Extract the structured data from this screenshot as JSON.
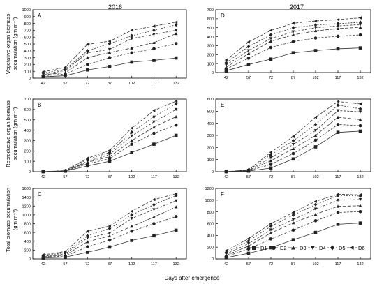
{
  "figure": {
    "year_left": "2016",
    "year_right": "2017",
    "row_ylabels": [
      [
        "Vegetative organ biomass",
        "accumulation (gm m⁻²)"
      ],
      [
        "Reproductive organ biomass",
        "accumulation (gm m⁻²)"
      ],
      [
        "Total biomass accumulation",
        "(gm m⁻²)"
      ]
    ],
    "xlabel": "Days after emergence",
    "legend": [
      "D1",
      "D2",
      "D3",
      "D4",
      "D5",
      "D6"
    ],
    "marker_shapes": [
      "square",
      "circle",
      "triangle-up",
      "triangle-down",
      "diamond",
      "triangle-left"
    ]
  },
  "chart_data": [
    {
      "type": "line",
      "panel": "A",
      "x": [
        42,
        57,
        72,
        87,
        102,
        117,
        132
      ],
      "ylim": [
        0,
        1000
      ],
      "yticks": [
        0,
        100,
        200,
        300,
        400,
        500,
        600,
        700,
        800,
        900,
        1000
      ],
      "series": [
        {
          "name": "D1",
          "values": [
            20,
            35,
            120,
            170,
            235,
            260,
            295
          ]
        },
        {
          "name": "D2",
          "values": [
            35,
            60,
            200,
            300,
            370,
            430,
            505
          ]
        },
        {
          "name": "D3",
          "values": [
            50,
            80,
            300,
            375,
            440,
            520,
            650
          ]
        },
        {
          "name": "D4",
          "values": [
            60,
            110,
            370,
            420,
            580,
            640,
            700
          ]
        },
        {
          "name": "D5",
          "values": [
            75,
            130,
            400,
            505,
            620,
            700,
            780
          ]
        },
        {
          "name": "D6",
          "values": [
            90,
            160,
            495,
            540,
            700,
            760,
            820
          ]
        }
      ]
    },
    {
      "type": "line",
      "panel": "B",
      "x": [
        42,
        57,
        72,
        87,
        102,
        117,
        132
      ],
      "ylim": [
        0,
        700
      ],
      "yticks": [
        0,
        100,
        200,
        300,
        400,
        500,
        600,
        700
      ],
      "series": [
        {
          "name": "D1",
          "values": [
            0,
            5,
            55,
            100,
            185,
            265,
            350
          ]
        },
        {
          "name": "D2",
          "values": [
            0,
            6,
            75,
            125,
            265,
            370,
            450
          ]
        },
        {
          "name": "D3",
          "values": [
            0,
            7,
            90,
            145,
            300,
            430,
            530
          ]
        },
        {
          "name": "D4",
          "values": [
            0,
            8,
            100,
            165,
            345,
            480,
            600
          ]
        },
        {
          "name": "D5",
          "values": [
            0,
            9,
            120,
            185,
            380,
            530,
            655
          ]
        },
        {
          "name": "D6",
          "values": [
            0,
            10,
            130,
            205,
            420,
            590,
            680
          ]
        }
      ]
    },
    {
      "type": "line",
      "panel": "C",
      "x": [
        42,
        57,
        72,
        87,
        102,
        117,
        132
      ],
      "ylim": [
        0,
        1600
      ],
      "yticks": [
        0,
        200,
        400,
        600,
        800,
        1000,
        1200,
        1400,
        1600
      ],
      "series": [
        {
          "name": "D1",
          "values": [
            20,
            40,
            150,
            270,
            420,
            525,
            650
          ]
        },
        {
          "name": "D2",
          "values": [
            35,
            65,
            275,
            425,
            630,
            800,
            960
          ]
        },
        {
          "name": "D3",
          "values": [
            50,
            85,
            390,
            520,
            740,
            950,
            1180
          ]
        },
        {
          "name": "D4",
          "values": [
            60,
            115,
            475,
            585,
            920,
            1120,
            1320
          ]
        },
        {
          "name": "D5",
          "values": [
            75,
            140,
            525,
            690,
            1000,
            1230,
            1440
          ]
        },
        {
          "name": "D6",
          "values": [
            90,
            170,
            625,
            745,
            1080,
            1345,
            1480
          ]
        }
      ]
    },
    {
      "type": "line",
      "panel": "D",
      "x": [
        42,
        57,
        72,
        87,
        102,
        117,
        132
      ],
      "ylim": [
        0,
        700
      ],
      "yticks": [
        0,
        100,
        200,
        300,
        400,
        500,
        600,
        700
      ],
      "series": [
        {
          "name": "D1",
          "values": [
            20,
            90,
            150,
            220,
            245,
            265,
            275
          ]
        },
        {
          "name": "D2",
          "values": [
            40,
            160,
            280,
            345,
            385,
            405,
            420
          ]
        },
        {
          "name": "D3",
          "values": [
            60,
            210,
            350,
            420,
            465,
            490,
            505
          ]
        },
        {
          "name": "D4",
          "values": [
            85,
            245,
            380,
            455,
            500,
            520,
            535
          ]
        },
        {
          "name": "D5",
          "values": [
            110,
            290,
            420,
            500,
            530,
            545,
            560
          ]
        },
        {
          "name": "D6",
          "values": [
            140,
            340,
            470,
            550,
            575,
            590,
            610
          ]
        }
      ]
    },
    {
      "type": "line",
      "panel": "E",
      "x": [
        42,
        57,
        72,
        87,
        102,
        117,
        132
      ],
      "ylim": [
        0,
        600
      ],
      "yticks": [
        0,
        100,
        200,
        300,
        400,
        500,
        600
      ],
      "series": [
        {
          "name": "D1",
          "values": [
            0,
            5,
            30,
            105,
            205,
            325,
            335
          ]
        },
        {
          "name": "D2",
          "values": [
            0,
            8,
            60,
            150,
            260,
            390,
            380
          ]
        },
        {
          "name": "D3",
          "values": [
            0,
            10,
            90,
            190,
            300,
            450,
            430
          ]
        },
        {
          "name": "D4",
          "values": [
            0,
            12,
            115,
            225,
            340,
            505,
            495
          ]
        },
        {
          "name": "D5",
          "values": [
            0,
            14,
            140,
            255,
            390,
            550,
            520
          ]
        },
        {
          "name": "D6",
          "values": [
            0,
            16,
            160,
            290,
            450,
            580,
            560
          ]
        }
      ]
    },
    {
      "type": "line",
      "panel": "F",
      "x": [
        42,
        57,
        72,
        87,
        102,
        117,
        132
      ],
      "ylim": [
        0,
        1200
      ],
      "yticks": [
        0,
        200,
        400,
        600,
        800,
        1000,
        1200
      ],
      "series": [
        {
          "name": "D1",
          "values": [
            20,
            95,
            190,
            325,
            450,
            590,
            610
          ]
        },
        {
          "name": "D2",
          "values": [
            40,
            170,
            340,
            490,
            650,
            790,
            805
          ]
        },
        {
          "name": "D3",
          "values": [
            60,
            220,
            440,
            615,
            760,
            895,
            905
          ]
        },
        {
          "name": "D4",
          "values": [
            85,
            260,
            495,
            670,
            850,
            1000,
            1010
          ]
        },
        {
          "name": "D5",
          "values": [
            110,
            305,
            555,
            745,
            925,
            1080,
            1070
          ]
        },
        {
          "name": "D6",
          "values": [
            140,
            345,
            600,
            790,
            980,
            1100,
            1090
          ]
        }
      ]
    }
  ]
}
